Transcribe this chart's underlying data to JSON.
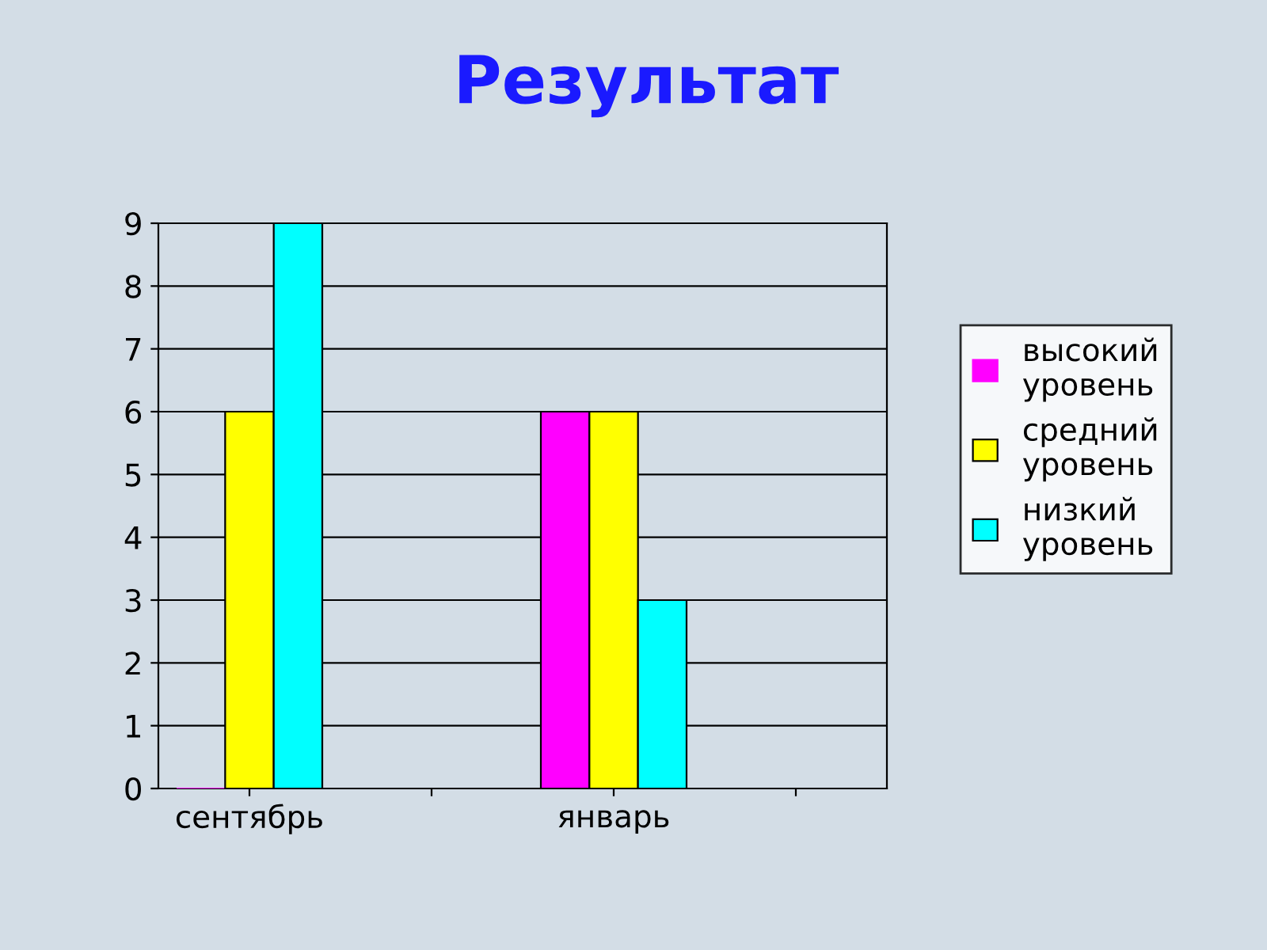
{
  "chart_data": {
    "type": "bar",
    "title": "Результат",
    "categories": [
      "сентябрь",
      null,
      "январь",
      null
    ],
    "series": [
      {
        "name": "высокий уровень",
        "color": "#ff00ff",
        "values": [
          0,
          null,
          6,
          null
        ]
      },
      {
        "name": "средний уровень",
        "color": "#ffff00",
        "values": [
          6,
          null,
          6,
          null
        ]
      },
      {
        "name": "низкий уровень",
        "color": "#00ffff",
        "values": [
          9,
          null,
          3,
          null
        ]
      }
    ],
    "ylim": [
      0,
      9
    ],
    "yticks": [
      0,
      1,
      2,
      3,
      4,
      5,
      6,
      7,
      8,
      9
    ],
    "grid": "y",
    "legend": "right"
  }
}
